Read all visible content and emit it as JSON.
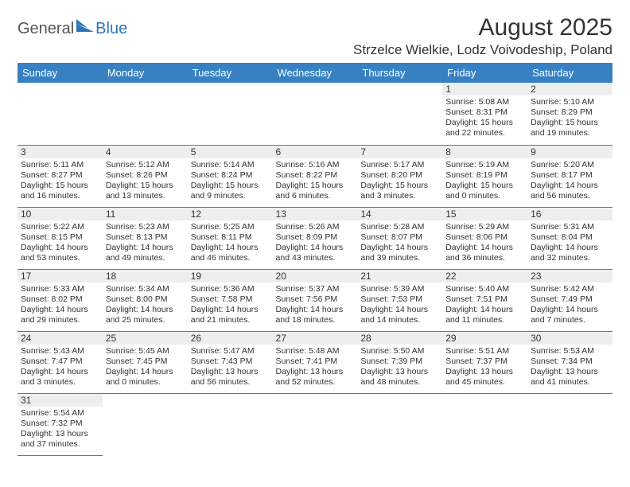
{
  "brand": {
    "general": "General",
    "blue": "Blue",
    "logo_color": "#2e74b5"
  },
  "title": "August 2025",
  "location": "Strzelce Wielkie, Lodz Voivodeship, Poland",
  "header_bg": "#3781c2",
  "daynum_bg": "#eeeeee",
  "weekdays": [
    "Sunday",
    "Monday",
    "Tuesday",
    "Wednesday",
    "Thursday",
    "Friday",
    "Saturday"
  ],
  "weeks": [
    [
      null,
      null,
      null,
      null,
      null,
      {
        "n": "1",
        "sr": "5:08 AM",
        "ss": "8:31 PM",
        "dl": "15 hours and 22 minutes."
      },
      {
        "n": "2",
        "sr": "5:10 AM",
        "ss": "8:29 PM",
        "dl": "15 hours and 19 minutes."
      }
    ],
    [
      {
        "n": "3",
        "sr": "5:11 AM",
        "ss": "8:27 PM",
        "dl": "15 hours and 16 minutes."
      },
      {
        "n": "4",
        "sr": "5:12 AM",
        "ss": "8:26 PM",
        "dl": "15 hours and 13 minutes."
      },
      {
        "n": "5",
        "sr": "5:14 AM",
        "ss": "8:24 PM",
        "dl": "15 hours and 9 minutes."
      },
      {
        "n": "6",
        "sr": "5:16 AM",
        "ss": "8:22 PM",
        "dl": "15 hours and 6 minutes."
      },
      {
        "n": "7",
        "sr": "5:17 AM",
        "ss": "8:20 PM",
        "dl": "15 hours and 3 minutes."
      },
      {
        "n": "8",
        "sr": "5:19 AM",
        "ss": "8:19 PM",
        "dl": "15 hours and 0 minutes."
      },
      {
        "n": "9",
        "sr": "5:20 AM",
        "ss": "8:17 PM",
        "dl": "14 hours and 56 minutes."
      }
    ],
    [
      {
        "n": "10",
        "sr": "5:22 AM",
        "ss": "8:15 PM",
        "dl": "14 hours and 53 minutes."
      },
      {
        "n": "11",
        "sr": "5:23 AM",
        "ss": "8:13 PM",
        "dl": "14 hours and 49 minutes."
      },
      {
        "n": "12",
        "sr": "5:25 AM",
        "ss": "8:11 PM",
        "dl": "14 hours and 46 minutes."
      },
      {
        "n": "13",
        "sr": "5:26 AM",
        "ss": "8:09 PM",
        "dl": "14 hours and 43 minutes."
      },
      {
        "n": "14",
        "sr": "5:28 AM",
        "ss": "8:07 PM",
        "dl": "14 hours and 39 minutes."
      },
      {
        "n": "15",
        "sr": "5:29 AM",
        "ss": "8:06 PM",
        "dl": "14 hours and 36 minutes."
      },
      {
        "n": "16",
        "sr": "5:31 AM",
        "ss": "8:04 PM",
        "dl": "14 hours and 32 minutes."
      }
    ],
    [
      {
        "n": "17",
        "sr": "5:33 AM",
        "ss": "8:02 PM",
        "dl": "14 hours and 29 minutes."
      },
      {
        "n": "18",
        "sr": "5:34 AM",
        "ss": "8:00 PM",
        "dl": "14 hours and 25 minutes."
      },
      {
        "n": "19",
        "sr": "5:36 AM",
        "ss": "7:58 PM",
        "dl": "14 hours and 21 minutes."
      },
      {
        "n": "20",
        "sr": "5:37 AM",
        "ss": "7:56 PM",
        "dl": "14 hours and 18 minutes."
      },
      {
        "n": "21",
        "sr": "5:39 AM",
        "ss": "7:53 PM",
        "dl": "14 hours and 14 minutes."
      },
      {
        "n": "22",
        "sr": "5:40 AM",
        "ss": "7:51 PM",
        "dl": "14 hours and 11 minutes."
      },
      {
        "n": "23",
        "sr": "5:42 AM",
        "ss": "7:49 PM",
        "dl": "14 hours and 7 minutes."
      }
    ],
    [
      {
        "n": "24",
        "sr": "5:43 AM",
        "ss": "7:47 PM",
        "dl": "14 hours and 3 minutes."
      },
      {
        "n": "25",
        "sr": "5:45 AM",
        "ss": "7:45 PM",
        "dl": "14 hours and 0 minutes."
      },
      {
        "n": "26",
        "sr": "5:47 AM",
        "ss": "7:43 PM",
        "dl": "13 hours and 56 minutes."
      },
      {
        "n": "27",
        "sr": "5:48 AM",
        "ss": "7:41 PM",
        "dl": "13 hours and 52 minutes."
      },
      {
        "n": "28",
        "sr": "5:50 AM",
        "ss": "7:39 PM",
        "dl": "13 hours and 48 minutes."
      },
      {
        "n": "29",
        "sr": "5:51 AM",
        "ss": "7:37 PM",
        "dl": "13 hours and 45 minutes."
      },
      {
        "n": "30",
        "sr": "5:53 AM",
        "ss": "7:34 PM",
        "dl": "13 hours and 41 minutes."
      }
    ],
    [
      {
        "n": "31",
        "sr": "5:54 AM",
        "ss": "7:32 PM",
        "dl": "13 hours and 37 minutes."
      },
      null,
      null,
      null,
      null,
      null,
      null
    ]
  ],
  "labels": {
    "sunrise": "Sunrise:",
    "sunset": "Sunset:",
    "daylight": "Daylight:"
  }
}
